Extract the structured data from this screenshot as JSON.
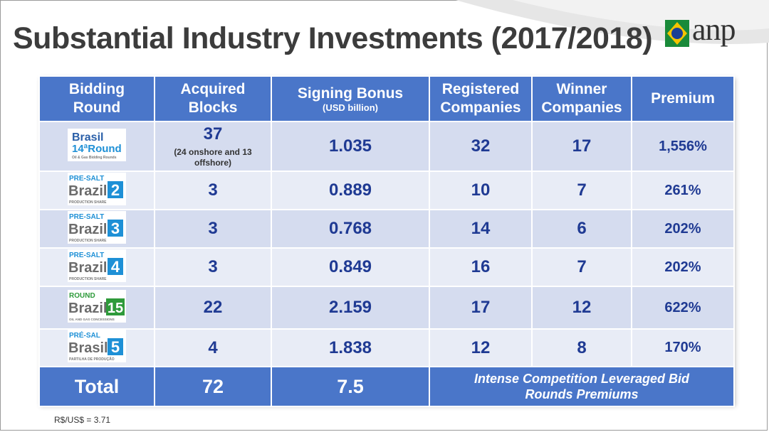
{
  "title": "Substantial Industry Investments (2017/2018)",
  "logo_text": "anp",
  "headers": {
    "bidding_round": "Bidding Round",
    "acquired_blocks": "Acquired Blocks",
    "signing_bonus": "Signing Bonus",
    "signing_bonus_sub": "(USD billion)",
    "registered": "Registered Companies",
    "winner": "Winner Companies",
    "premium": "Premium"
  },
  "rows": [
    {
      "logo_top": "Brasil",
      "logo_main": "14ªRound",
      "logo_sub": "Oil & Gas Bidding Rounds",
      "blocks": "37",
      "blocks_note": "(24 onshore and 13 offshore)",
      "bonus": "1.035",
      "registered": "32",
      "winner": "17",
      "premium": "1,556%"
    },
    {
      "logo_top": "PRE-SALT",
      "logo_main": "Brazil",
      "logo_num": "2",
      "logo_sub": "PRODUCTION SHARE",
      "blocks": "3",
      "bonus": "0.889",
      "registered": "10",
      "winner": "7",
      "premium": "261%"
    },
    {
      "logo_top": "PRE-SALT",
      "logo_main": "Brazil",
      "logo_num": "3",
      "logo_sub": "PRODUCTION SHARE",
      "blocks": "3",
      "bonus": "0.768",
      "registered": "14",
      "winner": "6",
      "premium": "202%"
    },
    {
      "logo_top": "PRE-SALT",
      "logo_main": "Brazil",
      "logo_num": "4",
      "logo_sub": "PRODUCTION SHARE",
      "blocks": "3",
      "bonus": "0.849",
      "registered": "16",
      "winner": "7",
      "premium": "202%"
    },
    {
      "logo_top": "ROUND",
      "logo_main": "Brazil",
      "logo_num": "15",
      "logo_sub": "OIL AND GAS CONCESSIONS",
      "blocks": "22",
      "bonus": "2.159",
      "registered": "17",
      "winner": "12",
      "premium": "622%"
    },
    {
      "logo_top": "PRÉ-SAL",
      "logo_main": "Brasil",
      "logo_num": "5",
      "logo_sub": "PARTILHA DE PRODUÇÃO",
      "blocks": "4",
      "bonus": "1.838",
      "registered": "12",
      "winner": "8",
      "premium": "170%"
    }
  ],
  "total": {
    "label": "Total",
    "blocks": "72",
    "bonus": "7.5",
    "message": "Intense Competition Leveraged Bid Rounds Premiums"
  },
  "footnote": "R$/US$ = 3.71",
  "colors": {
    "header_blue": "#4a76c9",
    "text_blue": "#1f3a93",
    "row_light": "#d5dcef"
  }
}
